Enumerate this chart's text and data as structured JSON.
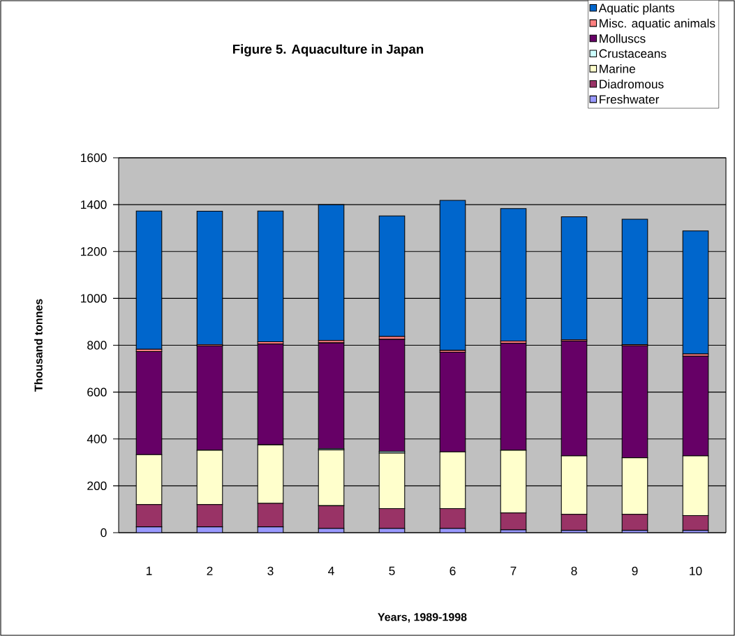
{
  "chart_data": {
    "type": "bar",
    "stacked": true,
    "title": "Figure 5. Aquaculture in Japan",
    "xlabel": "Years, 1989-1998",
    "ylabel": "Thousand tonnes",
    "categories": [
      "1",
      "2",
      "3",
      "4",
      "5",
      "6",
      "7",
      "8",
      "9",
      "10"
    ],
    "series": [
      {
        "name": "Freshwater",
        "color": "#9999ff",
        "values": [
          25,
          25,
          25,
          18,
          18,
          18,
          12,
          10,
          10,
          10
        ]
      },
      {
        "name": "Diadromous",
        "color": "#993366",
        "values": [
          95,
          95,
          100,
          97,
          85,
          85,
          72,
          68,
          68,
          63
        ]
      },
      {
        "name": "Marine",
        "color": "#ffffcc",
        "values": [
          213,
          232,
          250,
          238,
          237,
          242,
          268,
          250,
          242,
          255
        ]
      },
      {
        "name": "Crustaceans",
        "color": "#ccffff",
        "values": [
          null,
          null,
          null,
          5,
          7,
          null,
          null,
          null,
          null,
          null
        ]
      },
      {
        "name": "Molluscs",
        "color": "#660066",
        "values": [
          440,
          445,
          430,
          452,
          478,
          425,
          456,
          490,
          478,
          425
        ]
      },
      {
        "name": "Misc. aquatic animals",
        "color": "#ff8080",
        "values": [
          10,
          5,
          10,
          10,
          12,
          8,
          10,
          5,
          5,
          10
        ]
      },
      {
        "name": "Aquatic plants",
        "color": "#0066cc",
        "values": [
          590,
          570,
          558,
          580,
          515,
          640,
          565,
          525,
          535,
          525
        ]
      }
    ],
    "ylim": [
      0,
      1600
    ],
    "yticks": [
      0,
      200,
      400,
      600,
      800,
      1000,
      1200,
      1400,
      1600
    ],
    "grid": "y",
    "legend": "top right"
  }
}
